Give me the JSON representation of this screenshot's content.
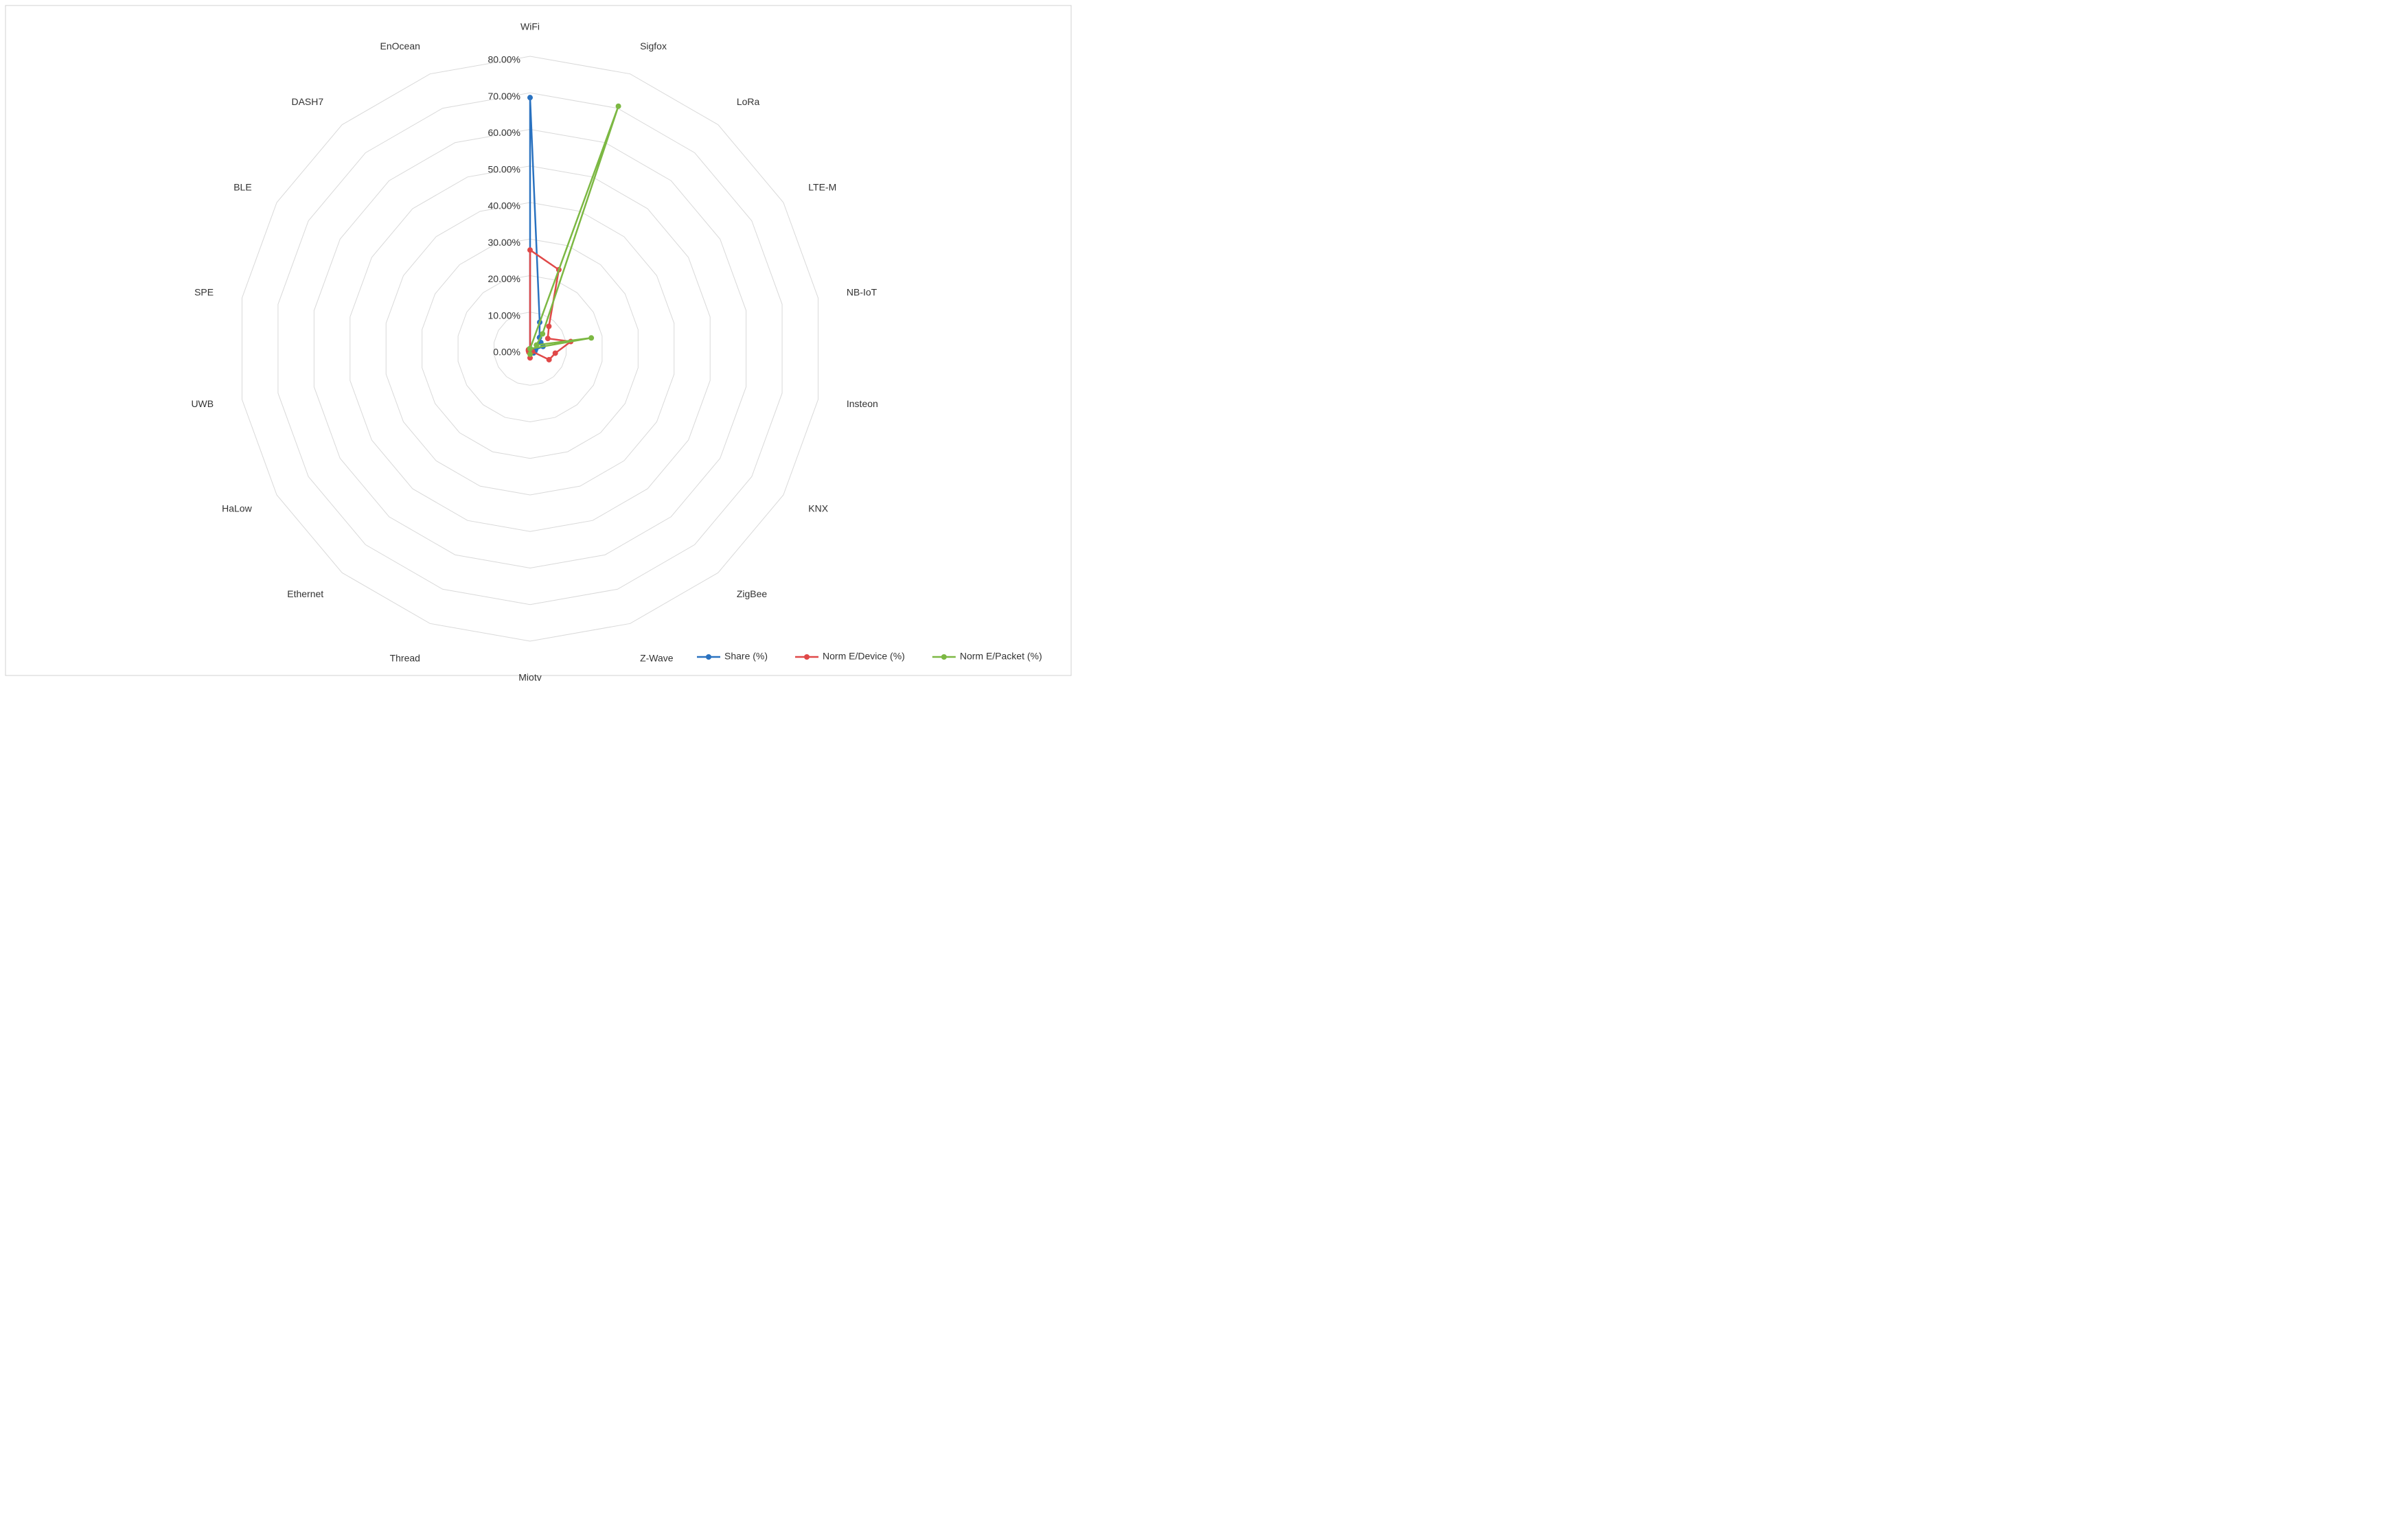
{
  "chart_data": {
    "type": "radar",
    "categories": [
      "WiFi",
      "Sigfox",
      "LoRa",
      "LTE-M",
      "NB-IoT",
      "Insteon",
      "KNX",
      "ZigBee",
      "Z-Wave",
      "Mioty",
      "Thread",
      "Ethernet",
      "HaLow",
      "UWB",
      "SPE",
      "BLE",
      "DASH7",
      "EnOcean"
    ],
    "series": [
      {
        "name": "Share (%)",
        "color": "#2a72c0",
        "values": [
          68.7,
          7.7,
          4,
          3.4,
          3.6,
          1.5,
          1.5,
          1.5,
          0.5,
          0.5,
          0.5,
          0.3,
          0.3,
          0,
          0,
          0,
          0,
          0
        ]
      },
      {
        "name": "Norm E/Device (%)",
        "color": "#e04848",
        "values": [
          27,
          23,
          8,
          5.6,
          11.3,
          7,
          6,
          1,
          1,
          2.5,
          1,
          0.7,
          0.5,
          0,
          0,
          0,
          0,
          0
        ]
      },
      {
        "name": "Norm E/Packet (%)",
        "color": "#7cb843",
        "values": [
          0,
          70.6,
          5.3,
          2,
          17,
          0,
          0,
          0,
          0,
          1.5,
          0,
          0,
          0,
          0,
          0,
          0,
          0,
          0
        ]
      }
    ],
    "ylim": [
      80,
      0
    ],
    "yticks": [
      {
        "value": 0,
        "label": "0.00%"
      },
      {
        "value": 10,
        "label": "10.00%"
      },
      {
        "value": 20,
        "label": "20.00%"
      },
      {
        "value": 30,
        "label": "30.00%"
      },
      {
        "value": 40,
        "label": "40.00%"
      },
      {
        "value": 50,
        "label": "50.00%"
      },
      {
        "value": 60,
        "label": "60.00%"
      },
      {
        "value": 70,
        "label": "70.00%"
      },
      {
        "value": 80,
        "label": "80.00%"
      }
    ],
    "grid": true,
    "legend": "bottom-right"
  }
}
